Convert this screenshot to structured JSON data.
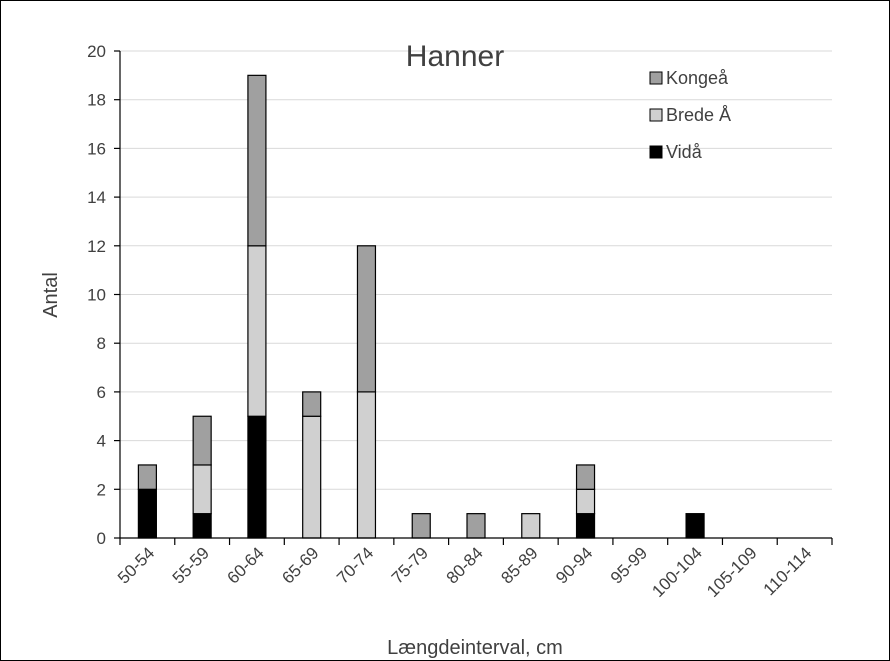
{
  "chart_data": {
    "type": "bar",
    "stacked": true,
    "title": "Hanner",
    "xlabel": "Længdeinterval, cm",
    "ylabel": "Antal",
    "ylim": [
      0,
      20
    ],
    "yticks": [
      0,
      2,
      4,
      6,
      8,
      10,
      12,
      14,
      16,
      18,
      20
    ],
    "grid": "horizontal",
    "legend_position": "top-right",
    "categories": [
      "50-54",
      "55-59",
      "60-64",
      "65-69",
      "70-74",
      "75-79",
      "80-84",
      "85-89",
      "90-94",
      "95-99",
      "100-104",
      "105-109",
      "110-114"
    ],
    "series": [
      {
        "name": "Vidå",
        "color": "#000000",
        "values": [
          2,
          1,
          5,
          0,
          0,
          0,
          0,
          0,
          1,
          0,
          1,
          0,
          0
        ]
      },
      {
        "name": "Brede Å",
        "color": "#d0d0d0",
        "values": [
          0,
          2,
          7,
          5,
          6,
          0,
          0,
          1,
          1,
          0,
          0,
          0,
          0
        ]
      },
      {
        "name": "Kongeå",
        "color": "#a0a0a0",
        "values": [
          1,
          2,
          7,
          1,
          6,
          1,
          1,
          0,
          1,
          0,
          0,
          0,
          0
        ]
      }
    ],
    "legend_order": [
      "Kongeå",
      "Brede Å",
      "Vidå"
    ]
  }
}
